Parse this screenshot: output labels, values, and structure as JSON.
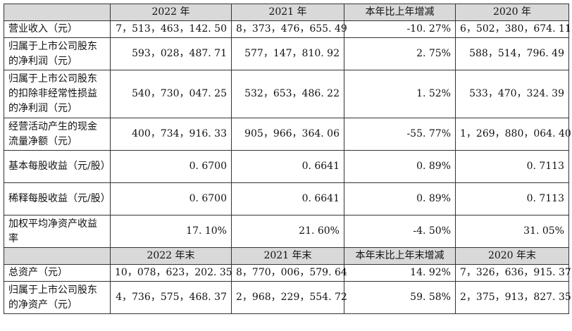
{
  "header1": [
    "",
    "2022 年",
    "2021 年",
    "本年比上年增减",
    "2020 年"
  ],
  "rows1": [
    {
      "label": "营业收入（元）",
      "values": [
        "7，513，463，142. 50",
        "8，373，476，655. 49",
        "-10. 27%",
        "6，502，380，674. 11"
      ]
    },
    {
      "label": "归属于上市公司股东的净利润（元）",
      "values": [
        "593，028，487. 71",
        "577，147，810. 92",
        "2. 75%",
        "588，514，796. 49"
      ]
    },
    {
      "label": "归属于上市公司股东的扣除非经常性损益的净利润（元）",
      "values": [
        "540，730，047. 25",
        "532，653，486. 22",
        "1. 52%",
        "533，470，324. 39"
      ]
    },
    {
      "label": "经营活动产生的现金流量净额（元）",
      "values": [
        "400，734，916. 33",
        "905，966，364. 06",
        "-55. 77%",
        "1，269，880，064. 40"
      ]
    },
    {
      "label": "基本每股收益（元/股）",
      "values": [
        "0. 6700",
        "0. 6641",
        "0. 89%",
        "0. 7113"
      ]
    },
    {
      "label": "稀释每股收益（元/股）",
      "values": [
        "0. 6700",
        "0. 6641",
        "0. 89%",
        "0. 7113"
      ]
    },
    {
      "label": "加权平均净资产收益率",
      "values": [
        "17. 10%",
        "21. 60%",
        "-4. 50%",
        "31. 05%"
      ]
    }
  ],
  "header2": [
    "",
    "2022 年末",
    "2021 年末",
    "本年末比上年末增减",
    "2020 年末"
  ],
  "rows2": [
    {
      "label": "总资产（元）",
      "values": [
        "10，078，623，202. 35",
        "8，770，006，579. 64",
        "14. 92%",
        "7，326，636，915. 37"
      ]
    },
    {
      "label": "归属于上市公司股东的净资产（元）",
      "values": [
        "4，736，575，468. 37",
        "2，968，229，554. 72",
        "59. 58%",
        "2，375，913，827. 35"
      ]
    }
  ]
}
